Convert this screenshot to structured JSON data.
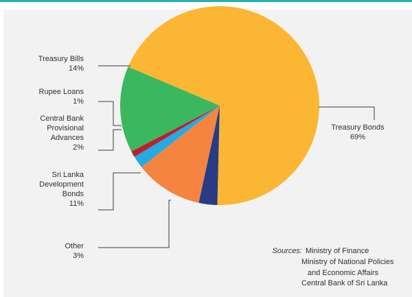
{
  "chart_data": {
    "type": "pie",
    "categories": [
      "Treasury Bonds",
      "Other",
      "Sri Lanka Development Bonds",
      "Central Bank Provisional Advances",
      "Rupee Loans",
      "Treasury Bills"
    ],
    "values": [
      69,
      3,
      11,
      2,
      1,
      14
    ],
    "value_suffix": "%",
    "slices": [
      {
        "key": "treasury-bonds",
        "name_lines": [
          "Treasury Bonds"
        ],
        "value": 69,
        "color": "#fbb733"
      },
      {
        "key": "other",
        "name_lines": [
          "Other"
        ],
        "value": 3,
        "color": "#283b84"
      },
      {
        "key": "sri-lanka-development-bonds",
        "name_lines": [
          "Sri Lanka",
          "Development",
          "Bonds"
        ],
        "value": 11,
        "color": "#f58440"
      },
      {
        "key": "central-bank-provisional-advances",
        "name_lines": [
          "Central Bank",
          "Provisional",
          "Advances"
        ],
        "value": 2,
        "color": "#25aae1"
      },
      {
        "key": "rupee-loans",
        "name_lines": [
          "Rupee Loans"
        ],
        "value": 1,
        "color": "#bf1e2e"
      },
      {
        "key": "treasury-bills",
        "name_lines": [
          "Treasury Bills"
        ],
        "value": 14,
        "color": "#3bb85f"
      }
    ],
    "title": "",
    "legend": "none"
  },
  "sources": {
    "prefix": "Sources:",
    "lines": [
      "Ministry of Finance",
      "Ministry of National Policies",
      "and Economic Affairs",
      "Central Bank of Sri Lanka"
    ]
  },
  "colors": {
    "accent_rule": "#27b3b0",
    "panel_background": "#f2f2f2",
    "leader_line": "#3a3a3a",
    "text": "#2f2f2f"
  }
}
